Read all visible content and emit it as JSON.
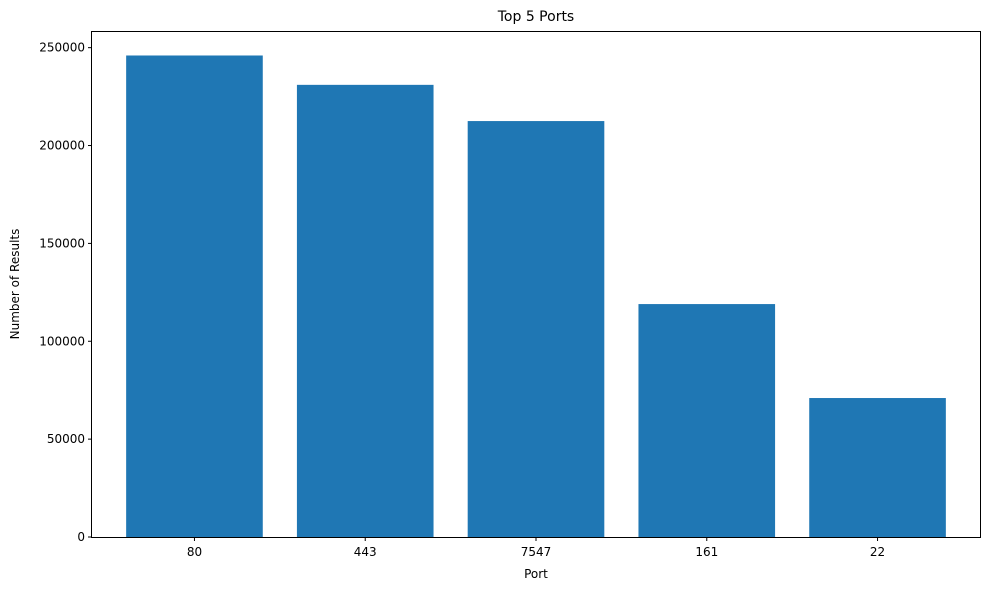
{
  "chart_data": {
    "type": "bar",
    "title": "Top 5 Ports",
    "xlabel": "Port",
    "ylabel": "Number of Results",
    "categories": [
      "80",
      "443",
      "7547",
      "161",
      "22"
    ],
    "values": [
      246000,
      231000,
      212500,
      119000,
      71000
    ],
    "ylim": [
      0,
      258000
    ],
    "yticks": [
      0,
      50000,
      100000,
      150000,
      200000,
      250000
    ],
    "ytick_labels": [
      "0",
      "50000",
      "100000",
      "150000",
      "200000",
      "250000"
    ],
    "grid": false,
    "legend": "none",
    "bar_color": "#1f77b4"
  }
}
